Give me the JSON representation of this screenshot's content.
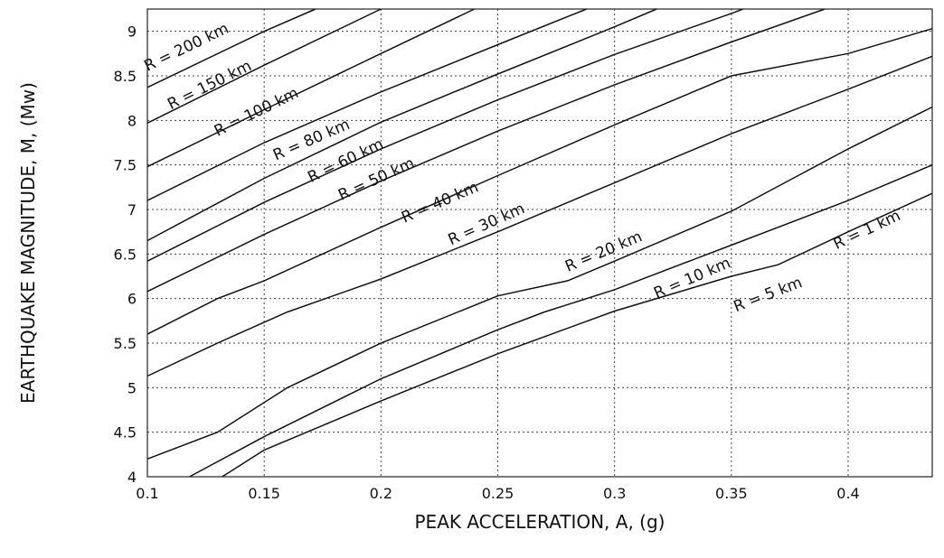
{
  "chart_data": {
    "type": "line",
    "title": "",
    "xlabel": "PEAK ACCELERATION, A, (g)",
    "ylabel": "EARTHQUAKE MAGNITUDE, M, (Mw)",
    "xlim": [
      0.1,
      0.436
    ],
    "ylim": [
      4,
      9.25
    ],
    "grid": true,
    "x_ticks": [
      0.1,
      0.15,
      0.2,
      0.25,
      0.3,
      0.35,
      0.4
    ],
    "x_tick_labels": [
      "0.1",
      "0.15",
      "0.2",
      "0.25",
      "0.3",
      "0.35",
      "0.4"
    ],
    "y_ticks": [
      4,
      4.5,
      5,
      5.5,
      6,
      6.5,
      7,
      7.5,
      8,
      8.5,
      9
    ],
    "y_tick_labels": [
      "4",
      "4.5",
      "5",
      "5.5",
      "6",
      "6.5",
      "7",
      "7.5",
      "8",
      "8.5",
      "9"
    ],
    "series": [
      {
        "name": "R = 200 km",
        "label_at": [
          0.1,
          8.55
        ],
        "points": [
          [
            0.1,
            8.37
          ],
          [
            0.15,
            9.0
          ],
          [
            0.172,
            9.25
          ]
        ]
      },
      {
        "name": "R = 150 km",
        "label_at": [
          0.11,
          8.12
        ],
        "points": [
          [
            0.1,
            7.97
          ],
          [
            0.15,
            8.62
          ],
          [
            0.2,
            9.25
          ]
        ]
      },
      {
        "name": "R = 100 km",
        "label_at": [
          0.13,
          7.82
        ],
        "points": [
          [
            0.1,
            7.48
          ],
          [
            0.15,
            8.12
          ],
          [
            0.2,
            8.75
          ],
          [
            0.24,
            9.25
          ]
        ]
      },
      {
        "name": "R = 80 km",
        "label_at": [
          0.155,
          7.55
        ],
        "points": [
          [
            0.1,
            7.1
          ],
          [
            0.15,
            7.75
          ],
          [
            0.2,
            8.32
          ],
          [
            0.25,
            8.85
          ],
          [
            0.288,
            9.25
          ]
        ]
      },
      {
        "name": "R = 60 km",
        "label_at": [
          0.17,
          7.3
        ],
        "points": [
          [
            0.1,
            6.65
          ],
          [
            0.15,
            7.35
          ],
          [
            0.2,
            7.98
          ],
          [
            0.25,
            8.52
          ],
          [
            0.3,
            9.05
          ],
          [
            0.318,
            9.25
          ]
        ]
      },
      {
        "name": "R = 50 km",
        "label_at": [
          0.183,
          7.1
        ],
        "points": [
          [
            0.1,
            6.42
          ],
          [
            0.15,
            7.08
          ],
          [
            0.2,
            7.68
          ],
          [
            0.25,
            8.23
          ],
          [
            0.3,
            8.74
          ],
          [
            0.35,
            9.2
          ],
          [
            0.355,
            9.25
          ]
        ]
      },
      {
        "name": "R = 40 km",
        "label_at": [
          0.21,
          6.85
        ],
        "points": [
          [
            0.1,
            6.08
          ],
          [
            0.15,
            6.72
          ],
          [
            0.2,
            7.32
          ],
          [
            0.25,
            7.88
          ],
          [
            0.3,
            8.4
          ],
          [
            0.35,
            8.88
          ],
          [
            0.39,
            9.25
          ]
        ]
      },
      {
        "name": "R = 30 km",
        "label_at": [
          0.23,
          6.6
        ],
        "points": [
          [
            0.1,
            5.6
          ],
          [
            0.13,
            6.0
          ],
          [
            0.15,
            6.2
          ],
          [
            0.2,
            6.8
          ],
          [
            0.25,
            7.38
          ],
          [
            0.3,
            7.95
          ],
          [
            0.35,
            8.5
          ],
          [
            0.4,
            8.75
          ],
          [
            0.436,
            9.03
          ]
        ]
      },
      {
        "name": "R = 20 km",
        "label_at": [
          0.28,
          6.3
        ],
        "points": [
          [
            0.1,
            5.13
          ],
          [
            0.13,
            5.5
          ],
          [
            0.16,
            5.85
          ],
          [
            0.2,
            6.22
          ],
          [
            0.25,
            6.75
          ],
          [
            0.3,
            7.3
          ],
          [
            0.35,
            7.85
          ],
          [
            0.4,
            8.35
          ],
          [
            0.436,
            8.72
          ]
        ]
      },
      {
        "name": "R = 10 km",
        "label_at": [
          0.318,
          6.0
        ],
        "points": [
          [
            0.1,
            4.2
          ],
          [
            0.13,
            4.5
          ],
          [
            0.16,
            5.0
          ],
          [
            0.2,
            5.5
          ],
          [
            0.25,
            6.03
          ],
          [
            0.28,
            6.2
          ],
          [
            0.3,
            6.42
          ],
          [
            0.35,
            6.98
          ],
          [
            0.4,
            7.68
          ],
          [
            0.436,
            8.15
          ]
        ]
      },
      {
        "name": "R = 5 km",
        "label_at": [
          0.352,
          5.85
        ],
        "points": [
          [
            0.118,
            4.0
          ],
          [
            0.15,
            4.45
          ],
          [
            0.2,
            5.1
          ],
          [
            0.25,
            5.65
          ],
          [
            0.27,
            5.85
          ],
          [
            0.3,
            6.1
          ],
          [
            0.35,
            6.6
          ],
          [
            0.4,
            7.1
          ],
          [
            0.436,
            7.5
          ]
        ]
      },
      {
        "name": "R = 1 km",
        "label_at": [
          0.395,
          6.55
        ],
        "points": [
          [
            0.132,
            4.0
          ],
          [
            0.15,
            4.3
          ],
          [
            0.2,
            4.85
          ],
          [
            0.25,
            5.38
          ],
          [
            0.3,
            5.86
          ],
          [
            0.35,
            6.25
          ],
          [
            0.37,
            6.38
          ],
          [
            0.4,
            6.75
          ],
          [
            0.436,
            7.18
          ]
        ]
      }
    ]
  }
}
